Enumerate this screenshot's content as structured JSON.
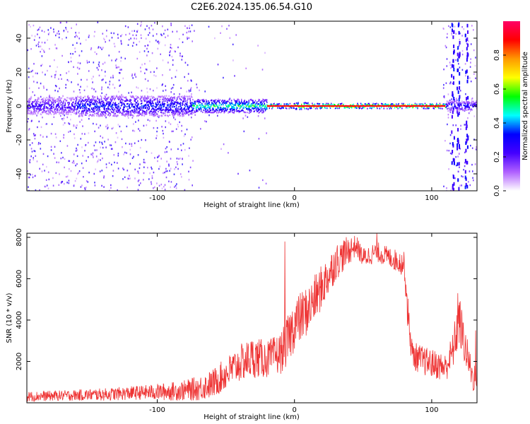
{
  "figure": {
    "title": "C2E6.2024.135.06.54.G10"
  },
  "chart_data": [
    {
      "type": "heatmap",
      "xlabel": "Height of straight line (km)",
      "ylabel": "Frequency (Hz)",
      "xlim": [
        -195,
        133
      ],
      "ylim": [
        -50,
        50
      ],
      "xticks": [
        -100,
        0,
        100
      ],
      "yticks": [
        -40,
        -20,
        0,
        20,
        40
      ],
      "colorbar": {
        "label": "Normalized spectral amplitude",
        "range": [
          0,
          1
        ],
        "ticks": [
          0.0,
          0.2,
          0.4,
          0.6,
          0.8
        ],
        "colors": [
          "#ffffff",
          "#b060ff",
          "#4400ff",
          "#0000ff",
          "#00ffff",
          "#00ff00",
          "#ffff00",
          "#ff9900",
          "#ff0000",
          "#ff0066"
        ]
      },
      "bands": [
        {
          "x": [
            -195,
            -160
          ],
          "amplitude": 0.3,
          "halfwidth_hz": 5
        },
        {
          "x": [
            -160,
            -75
          ],
          "amplitude": 0.4,
          "halfwidth_hz": 6
        },
        {
          "x": [
            -75,
            -20
          ],
          "amplitude": 0.6,
          "halfwidth_hz": 4
        },
        {
          "x": [
            -20,
            0
          ],
          "amplitude": 0.9,
          "halfwidth_hz": 1.5
        },
        {
          "x": [
            0,
            10
          ],
          "amplitude": 0.95,
          "halfwidth_hz": 2
        },
        {
          "x": [
            10,
            110
          ],
          "amplitude": 1.0,
          "halfwidth_hz": 1.5
        },
        {
          "x": [
            110,
            133
          ],
          "amplitude": 0.35,
          "halfwidth_hz": 3
        }
      ]
    },
    {
      "type": "line",
      "xlabel": "Height of straight line (km)",
      "ylabel": "SNR (10 * v/v)",
      "xlim": [
        -195,
        133
      ],
      "ylim": [
        0,
        8200
      ],
      "xticks": [
        -100,
        0,
        100
      ],
      "yticks": [
        2000,
        4000,
        6000,
        8000
      ],
      "color": "#ee3333",
      "envelope": {
        "x": [
          -195,
          -170,
          -140,
          -110,
          -90,
          -80,
          -70,
          -60,
          -50,
          -40,
          -30,
          -20,
          -10,
          -5,
          0,
          10,
          20,
          30,
          40,
          45,
          50,
          60,
          70,
          80,
          83,
          86,
          95,
          110,
          115,
          120,
          125,
          130,
          133
        ],
        "mean": [
          300,
          350,
          400,
          500,
          550,
          600,
          700,
          900,
          1400,
          1900,
          2200,
          2100,
          2400,
          3000,
          3800,
          4500,
          5600,
          6800,
          7400,
          7600,
          7000,
          7300,
          7000,
          6700,
          4000,
          2300,
          2000,
          1700,
          2400,
          4000,
          2500,
          1200,
          1400
        ],
        "spread": [
          250,
          250,
          300,
          350,
          450,
          500,
          600,
          700,
          800,
          900,
          1000,
          900,
          1000,
          1200,
          1300,
          1200,
          1100,
          900,
          700,
          500,
          500,
          500,
          500,
          600,
          900,
          700,
          700,
          700,
          900,
          1300,
          900,
          700,
          900
        ]
      },
      "spikes": [
        {
          "x": -7,
          "y": 7800
        },
        {
          "x": 60,
          "y": 8200
        },
        {
          "x": 119,
          "y": 5300
        },
        {
          "x": 132,
          "y": 3500
        }
      ]
    }
  ]
}
